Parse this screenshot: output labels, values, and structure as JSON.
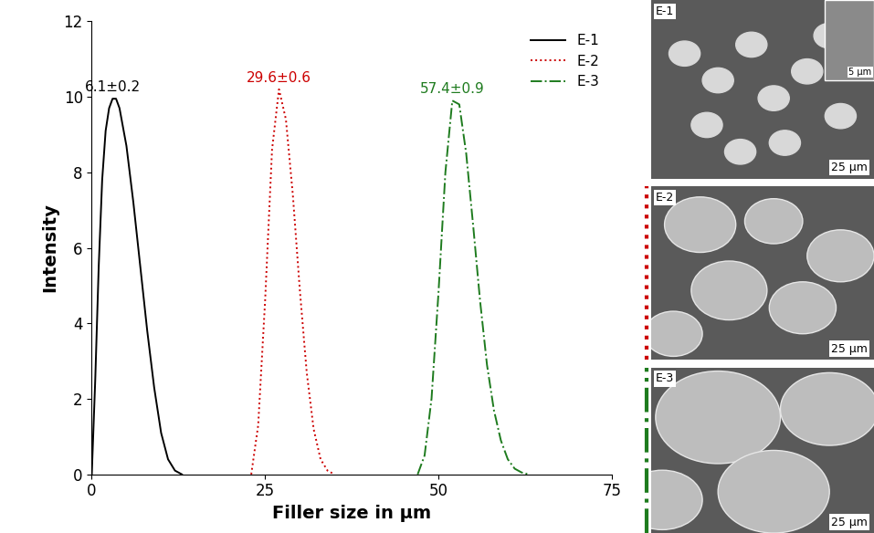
{
  "chart_data": [
    {
      "type": "line",
      "x_label": "Filler size in μm",
      "y_label": "Intensity",
      "xlim": [
        0,
        75
      ],
      "xticks": [
        0,
        25,
        50,
        75
      ],
      "ylim": [
        0,
        12
      ],
      "yticks": [
        0,
        2,
        4,
        6,
        8,
        10,
        12
      ],
      "legend": "upper right",
      "series": [
        {
          "name": "E-1",
          "color": "#000000",
          "line_style": "solid",
          "label": "6.1±0.2",
          "x": [
            0,
            0.5,
            1,
            1.5,
            2,
            2.5,
            3,
            3.5,
            4,
            5,
            6,
            7,
            8,
            9,
            10,
            11,
            12,
            13
          ],
          "values": [
            0,
            2.5,
            5.5,
            7.8,
            9.1,
            9.7,
            9.95,
            9.95,
            9.7,
            8.7,
            7.2,
            5.5,
            3.8,
            2.3,
            1.1,
            0.4,
            0.1,
            0
          ]
        },
        {
          "name": "E-2",
          "color": "#cc0000",
          "line_style": "dotted",
          "label": "29.6±0.6",
          "x": [
            23,
            24,
            25,
            26,
            27,
            28,
            29,
            30,
            31,
            32,
            33,
            34,
            35
          ],
          "values": [
            0,
            1.3,
            4.6,
            8.6,
            10.2,
            9.4,
            7.4,
            4.9,
            2.7,
            1.2,
            0.4,
            0.1,
            0
          ]
        },
        {
          "name": "E-3",
          "color": "#1e7b1e",
          "line_style": "dashdot",
          "label": "57.4±0.9",
          "x": [
            47,
            48,
            49,
            50,
            51,
            52,
            53,
            54,
            55,
            56,
            57,
            58,
            59,
            60,
            61,
            62,
            63
          ],
          "values": [
            0,
            0.5,
            2.0,
            4.8,
            8.0,
            9.9,
            9.8,
            8.5,
            6.6,
            4.6,
            2.9,
            1.7,
            0.9,
            0.4,
            0.15,
            0.05,
            0
          ]
        }
      ]
    },
    {
      "type": "image_panels",
      "panels": [
        {
          "label": "E-1",
          "scale_bar": "25 µm",
          "inset_scale_bar": "5 µm"
        },
        {
          "label": "E-2",
          "scale_bar": "25 µm"
        },
        {
          "label": "E-3",
          "scale_bar": "25 µm"
        }
      ]
    }
  ]
}
